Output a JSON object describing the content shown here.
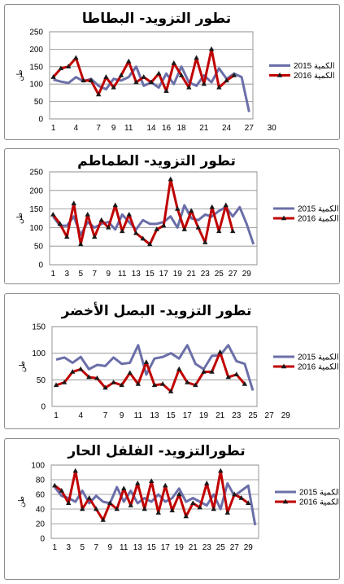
{
  "chart_data": [
    {
      "type": "line",
      "title": "تطور التزويد- البطاطا",
      "ylabel": "طن",
      "ylim": [
        0,
        250
      ],
      "yticks": [
        0,
        50,
        100,
        150,
        200,
        250
      ],
      "xticks": [
        1,
        4,
        7,
        9,
        11,
        14,
        16,
        18,
        21,
        24,
        27,
        30
      ],
      "grid": true,
      "legend_position": "right",
      "series": [
        {
          "name": "2015 الكمية",
          "color": "#6b6fa8",
          "marker": "none",
          "values": [
            113,
            107,
            103,
            120,
            108,
            115,
            95,
            85,
            115,
            110,
            120,
            150,
            95,
            105,
            90,
            130,
            100,
            150,
            105,
            95,
            125,
            105,
            145,
            115,
            130,
            120,
            20
          ]
        },
        {
          "name": "2016 الكمية",
          "color": "#c00000",
          "marker": "triangle",
          "values": [
            120,
            145,
            150,
            175,
            110,
            110,
            70,
            120,
            90,
            125,
            165,
            105,
            120,
            105,
            130,
            80,
            160,
            125,
            90,
            175,
            100,
            200,
            90,
            110,
            125,
            null,
            null
          ]
        }
      ]
    },
    {
      "type": "line",
      "title": "تطور التزويد- الطماطم",
      "ylabel": "طن",
      "ylim": [
        0,
        250
      ],
      "yticks": [
        0,
        50,
        100,
        150,
        200,
        250
      ],
      "xticks": [
        1,
        3,
        5,
        7,
        9,
        11,
        13,
        15,
        17,
        19,
        21,
        23,
        25,
        27,
        29
      ],
      "grid": true,
      "legend_position": "right",
      "series": [
        {
          "name": "2015 الكمية",
          "color": "#6b6fa8",
          "marker": "none",
          "values": [
            130,
            105,
            105,
            130,
            80,
            115,
            100,
            110,
            115,
            95,
            135,
            115,
            95,
            120,
            110,
            110,
            115,
            130,
            100,
            160,
            125,
            120,
            135,
            130,
            145,
            155,
            130,
            155,
            110,
            55
          ]
        },
        {
          "name": "2016 الكمية",
          "color": "#c00000",
          "marker": "triangle",
          "values": [
            135,
            110,
            75,
            165,
            55,
            135,
            75,
            120,
            100,
            160,
            90,
            135,
            85,
            70,
            55,
            95,
            105,
            230,
            150,
            95,
            145,
            100,
            60,
            155,
            90,
            160,
            90,
            null,
            null,
            null
          ]
        }
      ]
    },
    {
      "type": "line",
      "title": "تطور التزويد- البصل الأخضر",
      "ylabel": "طن",
      "ylim": [
        0,
        150
      ],
      "yticks": [
        0,
        50,
        100,
        150
      ],
      "xticks": [
        1,
        4,
        7,
        9,
        11,
        13,
        15,
        17,
        19,
        21,
        23,
        25,
        27,
        29
      ],
      "grid": true,
      "legend_position": "right",
      "series": [
        {
          "name": "2015 الكمية",
          "color": "#6b6fa8",
          "marker": "none",
          "values": [
            88,
            92,
            82,
            93,
            70,
            78,
            76,
            92,
            80,
            82,
            115,
            60,
            90,
            93,
            100,
            90,
            115,
            80,
            70,
            95,
            96,
            115,
            85,
            80,
            30
          ]
        },
        {
          "name": "2016 الكمية",
          "color": "#c00000",
          "marker": "triangle",
          "values": [
            40,
            45,
            65,
            70,
            55,
            53,
            35,
            45,
            40,
            63,
            42,
            83,
            40,
            42,
            28,
            70,
            45,
            40,
            65,
            65,
            102,
            55,
            60,
            42,
            null
          ]
        }
      ]
    },
    {
      "type": "line",
      "title": "تطورالتزويد- الفلفل الحار",
      "ylabel": "طن",
      "ylim": [
        0,
        100
      ],
      "yticks": [
        0,
        20,
        40,
        60,
        80,
        100
      ],
      "xticks": [
        1,
        3,
        5,
        7,
        9,
        11,
        13,
        15,
        17,
        19,
        21,
        23,
        25,
        27,
        29
      ],
      "grid": true,
      "legend_position": "right",
      "series": [
        {
          "name": "2015 الكمية",
          "color": "#6b6fa8",
          "marker": "none",
          "values": [
            70,
            58,
            55,
            50,
            65,
            48,
            58,
            50,
            48,
            70,
            50,
            65,
            48,
            55,
            50,
            60,
            50,
            55,
            68,
            50,
            55,
            50,
            45,
            60,
            40,
            75,
            58,
            65,
            72,
            18
          ]
        },
        {
          "name": "2016 الكمية",
          "color": "#c00000",
          "marker": "triangle",
          "values": [
            72,
            65,
            48,
            92,
            40,
            55,
            40,
            25,
            48,
            40,
            68,
            45,
            75,
            40,
            78,
            35,
            72,
            38,
            60,
            30,
            48,
            42,
            75,
            40,
            92,
            35,
            60,
            55,
            48,
            null
          ]
        }
      ]
    }
  ]
}
